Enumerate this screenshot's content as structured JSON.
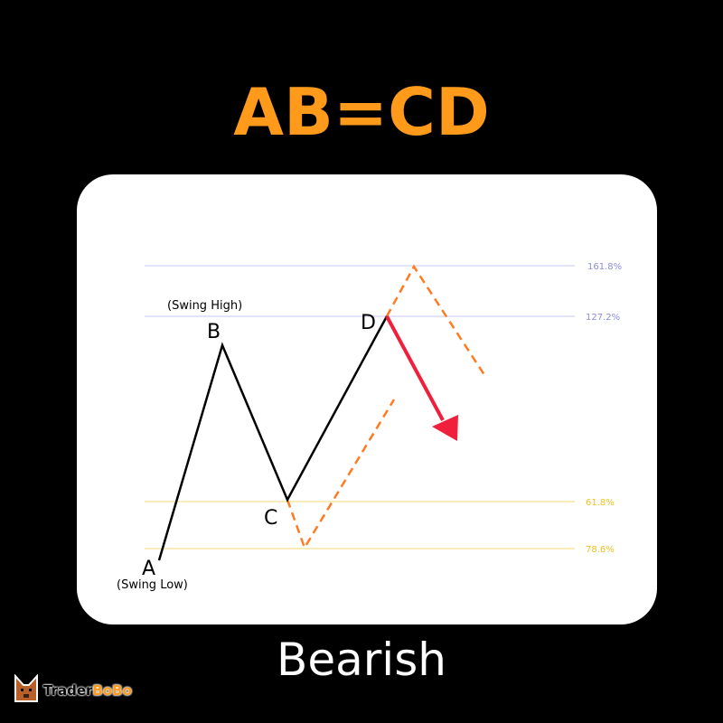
{
  "title": "AB=CD",
  "subtitle": "Bearish",
  "points": {
    "A": "A",
    "B": "B",
    "C": "C",
    "D": "D"
  },
  "labels": {
    "swing_high": "(Swing High)",
    "swing_low": "(Swing Low)"
  },
  "levels": [
    {
      "label": "161.8%",
      "color": "#8c8ce0"
    },
    {
      "label": "127.2%",
      "color": "#8c8ce0"
    },
    {
      "label": "61.8%",
      "color": "#f0c020"
    },
    {
      "label": "78.6%",
      "color": "#f0c020"
    }
  ],
  "colors": {
    "main_line": "#000000",
    "projection": "#ff7a20",
    "arrow": "#f0203c",
    "title": "#ff9a1a"
  },
  "logo": {
    "part1": "Trader",
    "part2": "BoBo"
  }
}
